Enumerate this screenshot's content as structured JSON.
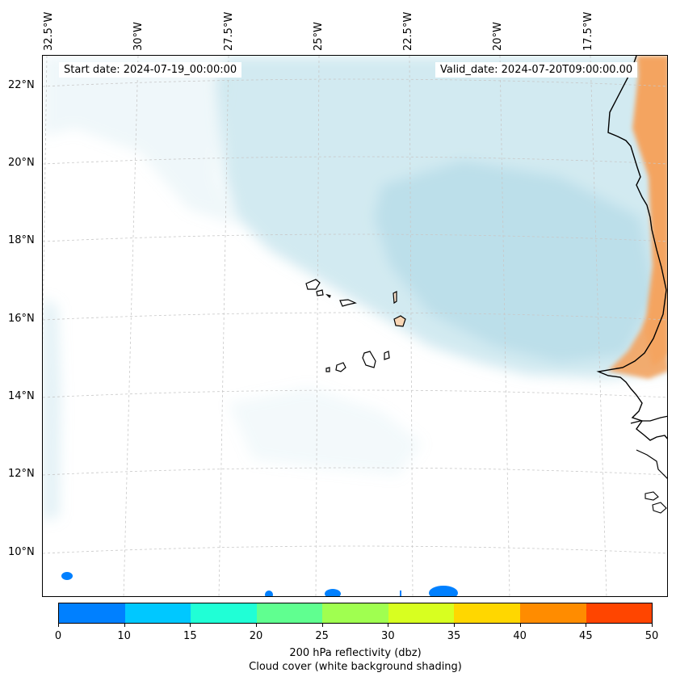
{
  "map": {
    "start_date": "Start date: 2024-07-19_00:00:00",
    "valid_date": "Valid_date: 2024-07-20T09:00:00.00",
    "longitude_labels": [
      "32.5°W",
      "30°W",
      "27.5°W",
      "25°W",
      "22.5°W",
      "20°W",
      "17.5°W"
    ],
    "latitude_labels": [
      "22°N",
      "20°N",
      "18°N",
      "16°N",
      "14°N",
      "12°N",
      "10°N"
    ],
    "colors": {
      "cloud": "#add8e6",
      "land_shading": "#f4a460",
      "coastline": "#000000",
      "gridline": "#c8c8c8"
    },
    "places": [
      "Cape Verde islands",
      "West African coast (Senegal, Mauritania, Gambia, Guinea-Bissau)"
    ]
  },
  "colorbar": {
    "ticks": [
      "0",
      "10",
      "15",
      "20",
      "25",
      "30",
      "35",
      "40",
      "45",
      "50"
    ],
    "colors": [
      "#0080ff",
      "#00c8ff",
      "#20ffd6",
      "#60ff90",
      "#a0ff50",
      "#d8ff20",
      "#ffd700",
      "#ff8c00",
      "#ff4500"
    ],
    "title_line1": "200 hPa reflectivity (dbz)",
    "title_line2": "Cloud cover (white background shading)"
  }
}
